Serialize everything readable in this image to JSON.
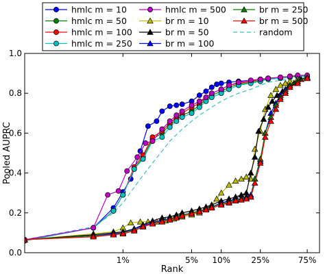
{
  "chart_data": {
    "type": "line",
    "xlabel": "Rank",
    "ylabel": "Pooled AUPRC",
    "xscale": "log",
    "xlim": [
      0.1,
      100
    ],
    "ylim": [
      0.0,
      1.0
    ],
    "grid": false,
    "legend_position": "top-left, 3 columns",
    "x_ticks": [
      {
        "value": 1,
        "label": "1%"
      },
      {
        "value": 5,
        "label": "5%"
      },
      {
        "value": 10,
        "label": "10%"
      },
      {
        "value": 25,
        "label": "25%"
      },
      {
        "value": 75,
        "label": "75%"
      }
    ],
    "y_ticks": [
      {
        "value": 0.0,
        "label": "0.0"
      },
      {
        "value": 0.2,
        "label": "0.2"
      },
      {
        "value": 0.4,
        "label": "0.4"
      },
      {
        "value": 0.6,
        "label": "0.6"
      },
      {
        "value": 0.8,
        "label": "0.8"
      },
      {
        "value": 1.0,
        "label": "1.0"
      }
    ],
    "series": [
      {
        "name": "hmlc m = 10",
        "color": "#0000ff",
        "marker": "circle",
        "line": "solid",
        "x": [
          0.1,
          0.5,
          0.8,
          1.0,
          1.2,
          1.5,
          1.8,
          2.2,
          2.5,
          3,
          3.5,
          4,
          5,
          6,
          7,
          8,
          9,
          10,
          12,
          15,
          20,
          25,
          30,
          40,
          50,
          60,
          75
        ],
        "y": [
          0.065,
          0.125,
          0.225,
          0.305,
          0.37,
          0.51,
          0.635,
          0.66,
          0.71,
          0.735,
          0.74,
          0.745,
          0.76,
          0.79,
          0.81,
          0.83,
          0.845,
          0.85,
          0.855,
          0.86,
          0.865,
          0.87,
          0.875,
          0.88,
          0.885,
          0.885,
          0.885
        ]
      },
      {
        "name": "hmlc m = 50",
        "color": "#008000",
        "marker": "circle",
        "line": "solid",
        "x": [
          0.1,
          0.5,
          0.8,
          1.0,
          1.3,
          1.6,
          2.0,
          2.5,
          3,
          3.5,
          4,
          5,
          6,
          7,
          8,
          10,
          12,
          15,
          20,
          25,
          30,
          40,
          50,
          60,
          75
        ],
        "y": [
          0.06,
          0.125,
          0.21,
          0.29,
          0.42,
          0.48,
          0.57,
          0.6,
          0.64,
          0.67,
          0.69,
          0.71,
          0.74,
          0.77,
          0.79,
          0.81,
          0.83,
          0.845,
          0.855,
          0.865,
          0.875,
          0.88,
          0.885,
          0.885,
          0.885
        ]
      },
      {
        "name": "hmlc m = 100",
        "color": "#ff0000",
        "marker": "circle",
        "line": "solid",
        "x": [
          0.1,
          0.5,
          0.8,
          1.0,
          1.3,
          1.6,
          2.0,
          2.5,
          3,
          3.5,
          4,
          5,
          6,
          7,
          8,
          10,
          12,
          15,
          20,
          25,
          30,
          40,
          50,
          60,
          75
        ],
        "y": [
          0.06,
          0.125,
          0.21,
          0.29,
          0.43,
          0.49,
          0.58,
          0.61,
          0.65,
          0.68,
          0.7,
          0.73,
          0.75,
          0.78,
          0.8,
          0.82,
          0.84,
          0.85,
          0.86,
          0.87,
          0.875,
          0.88,
          0.885,
          0.885,
          0.885
        ]
      },
      {
        "name": "hmlc m = 250",
        "color": "#00bfbf",
        "marker": "circle",
        "line": "solid",
        "x": [
          0.1,
          0.5,
          0.8,
          1.0,
          1.3,
          1.6,
          2.0,
          2.5,
          3,
          3.5,
          4,
          5,
          6,
          7,
          8,
          10,
          12,
          15,
          20,
          25,
          30,
          40,
          50,
          60,
          75
        ],
        "y": [
          0.06,
          0.125,
          0.21,
          0.29,
          0.42,
          0.47,
          0.56,
          0.58,
          0.63,
          0.66,
          0.68,
          0.7,
          0.73,
          0.76,
          0.78,
          0.8,
          0.82,
          0.84,
          0.85,
          0.86,
          0.87,
          0.875,
          0.88,
          0.885,
          0.885
        ]
      },
      {
        "name": "hmlc m = 500",
        "color": "#bf00bf",
        "marker": "circle",
        "line": "solid",
        "x": [
          0.1,
          0.5,
          0.7,
          0.9,
          1.1,
          1.4,
          1.7,
          2.0,
          2.5,
          3,
          3.5,
          4,
          5,
          6,
          7,
          8,
          10,
          12,
          15,
          20,
          25,
          30,
          40,
          50,
          60,
          75
        ],
        "y": [
          0.065,
          0.125,
          0.29,
          0.31,
          0.41,
          0.48,
          0.55,
          0.56,
          0.62,
          0.66,
          0.69,
          0.71,
          0.74,
          0.76,
          0.78,
          0.8,
          0.82,
          0.84,
          0.855,
          0.865,
          0.87,
          0.875,
          0.88,
          0.885,
          0.89,
          0.89
        ]
      },
      {
        "name": "br m = 10",
        "color": "#bfbf00",
        "marker": "triangle",
        "line": "solid",
        "x": [
          0.1,
          0.5,
          0.8,
          1.0,
          1.2,
          1.5,
          1.8,
          2.2,
          2.7,
          3.3,
          4,
          5,
          6,
          7,
          8,
          9,
          10,
          12,
          14,
          16,
          18,
          20,
          22,
          25,
          28,
          32,
          36,
          40,
          45,
          50,
          60,
          75
        ],
        "y": [
          0.065,
          0.095,
          0.105,
          0.125,
          0.15,
          0.155,
          0.155,
          0.155,
          0.16,
          0.17,
          0.18,
          0.19,
          0.2,
          0.22,
          0.24,
          0.27,
          0.3,
          0.34,
          0.36,
          0.37,
          0.38,
          0.37,
          0.52,
          0.61,
          0.72,
          0.79,
          0.82,
          0.84,
          0.85,
          0.86,
          0.87,
          0.875
        ]
      },
      {
        "name": "br m = 50",
        "color": "#000000",
        "marker": "triangle",
        "line": "solid",
        "x": [
          0.1,
          0.5,
          0.8,
          1.0,
          1.3,
          1.6,
          2.0,
          2.5,
          3,
          3.5,
          4,
          5,
          6,
          7,
          8,
          10,
          12,
          14,
          16,
          18,
          20,
          22,
          24,
          27,
          30,
          33,
          37,
          42,
          48,
          55,
          65,
          75
        ],
        "y": [
          0.065,
          0.09,
          0.1,
          0.105,
          0.12,
          0.14,
          0.16,
          0.175,
          0.18,
          0.19,
          0.2,
          0.21,
          0.22,
          0.23,
          0.24,
          0.26,
          0.27,
          0.28,
          0.29,
          0.3,
          0.4,
          0.48,
          0.61,
          0.67,
          0.73,
          0.76,
          0.79,
          0.81,
          0.83,
          0.85,
          0.87,
          0.88
        ]
      },
      {
        "name": "br m = 100",
        "color": "#0000ff",
        "marker": "triangle",
        "line": "solid",
        "x": [
          0.1,
          0.5,
          0.8,
          1.0,
          1.3,
          1.6,
          2.0,
          2.5,
          3,
          3.5,
          4,
          5,
          6,
          7,
          8,
          10,
          12,
          14,
          16,
          18,
          20,
          22,
          25,
          28,
          32,
          36,
          40,
          45,
          50,
          60,
          75
        ],
        "y": [
          0.065,
          0.085,
          0.095,
          0.1,
          0.12,
          0.135,
          0.15,
          0.165,
          0.17,
          0.18,
          0.19,
          0.2,
          0.21,
          0.22,
          0.23,
          0.25,
          0.26,
          0.27,
          0.27,
          0.28,
          0.29,
          0.37,
          0.46,
          0.6,
          0.7,
          0.75,
          0.79,
          0.82,
          0.84,
          0.86,
          0.88
        ]
      },
      {
        "name": "br m = 250",
        "color": "#008000",
        "marker": "triangle",
        "line": "solid",
        "x": [
          0.1,
          0.5,
          0.8,
          1.0,
          1.3,
          1.6,
          2.0,
          2.5,
          3,
          3.5,
          4,
          5,
          6,
          7,
          8,
          10,
          12,
          14,
          16,
          18,
          20,
          22,
          25,
          28,
          32,
          36,
          40,
          45,
          50,
          60,
          75
        ],
        "y": [
          0.065,
          0.085,
          0.09,
          0.1,
          0.115,
          0.13,
          0.145,
          0.16,
          0.17,
          0.18,
          0.19,
          0.2,
          0.21,
          0.22,
          0.23,
          0.245,
          0.255,
          0.265,
          0.27,
          0.275,
          0.28,
          0.37,
          0.47,
          0.6,
          0.68,
          0.74,
          0.78,
          0.81,
          0.84,
          0.86,
          0.88
        ]
      },
      {
        "name": "br m = 500",
        "color": "#ff0000",
        "marker": "triangle",
        "line": "solid",
        "x": [
          0.1,
          0.5,
          0.8,
          1.0,
          1.3,
          1.6,
          2.0,
          2.5,
          3,
          3.5,
          4,
          5,
          6,
          7,
          8,
          10,
          12,
          14,
          16,
          18,
          20,
          22,
          25,
          28,
          32,
          36,
          40,
          45,
          50,
          60,
          75
        ],
        "y": [
          0.065,
          0.08,
          0.09,
          0.095,
          0.11,
          0.13,
          0.145,
          0.155,
          0.165,
          0.175,
          0.185,
          0.195,
          0.205,
          0.215,
          0.225,
          0.24,
          0.25,
          0.26,
          0.265,
          0.27,
          0.28,
          0.35,
          0.45,
          0.58,
          0.66,
          0.72,
          0.77,
          0.8,
          0.83,
          0.85,
          0.875
        ]
      },
      {
        "name": "random",
        "color": "#3fbfbf",
        "marker": "none",
        "line": "dashed",
        "x": [
          0.1,
          0.5,
          0.8,
          1.0,
          1.5,
          2.0,
          2.5,
          3,
          4,
          5,
          6,
          8,
          10,
          12,
          15,
          20,
          25,
          30,
          40,
          50,
          60,
          75
        ],
        "y": [
          0.065,
          0.13,
          0.2,
          0.25,
          0.37,
          0.45,
          0.51,
          0.56,
          0.62,
          0.66,
          0.69,
          0.73,
          0.76,
          0.78,
          0.8,
          0.82,
          0.84,
          0.855,
          0.865,
          0.87,
          0.875,
          0.88
        ]
      }
    ]
  }
}
